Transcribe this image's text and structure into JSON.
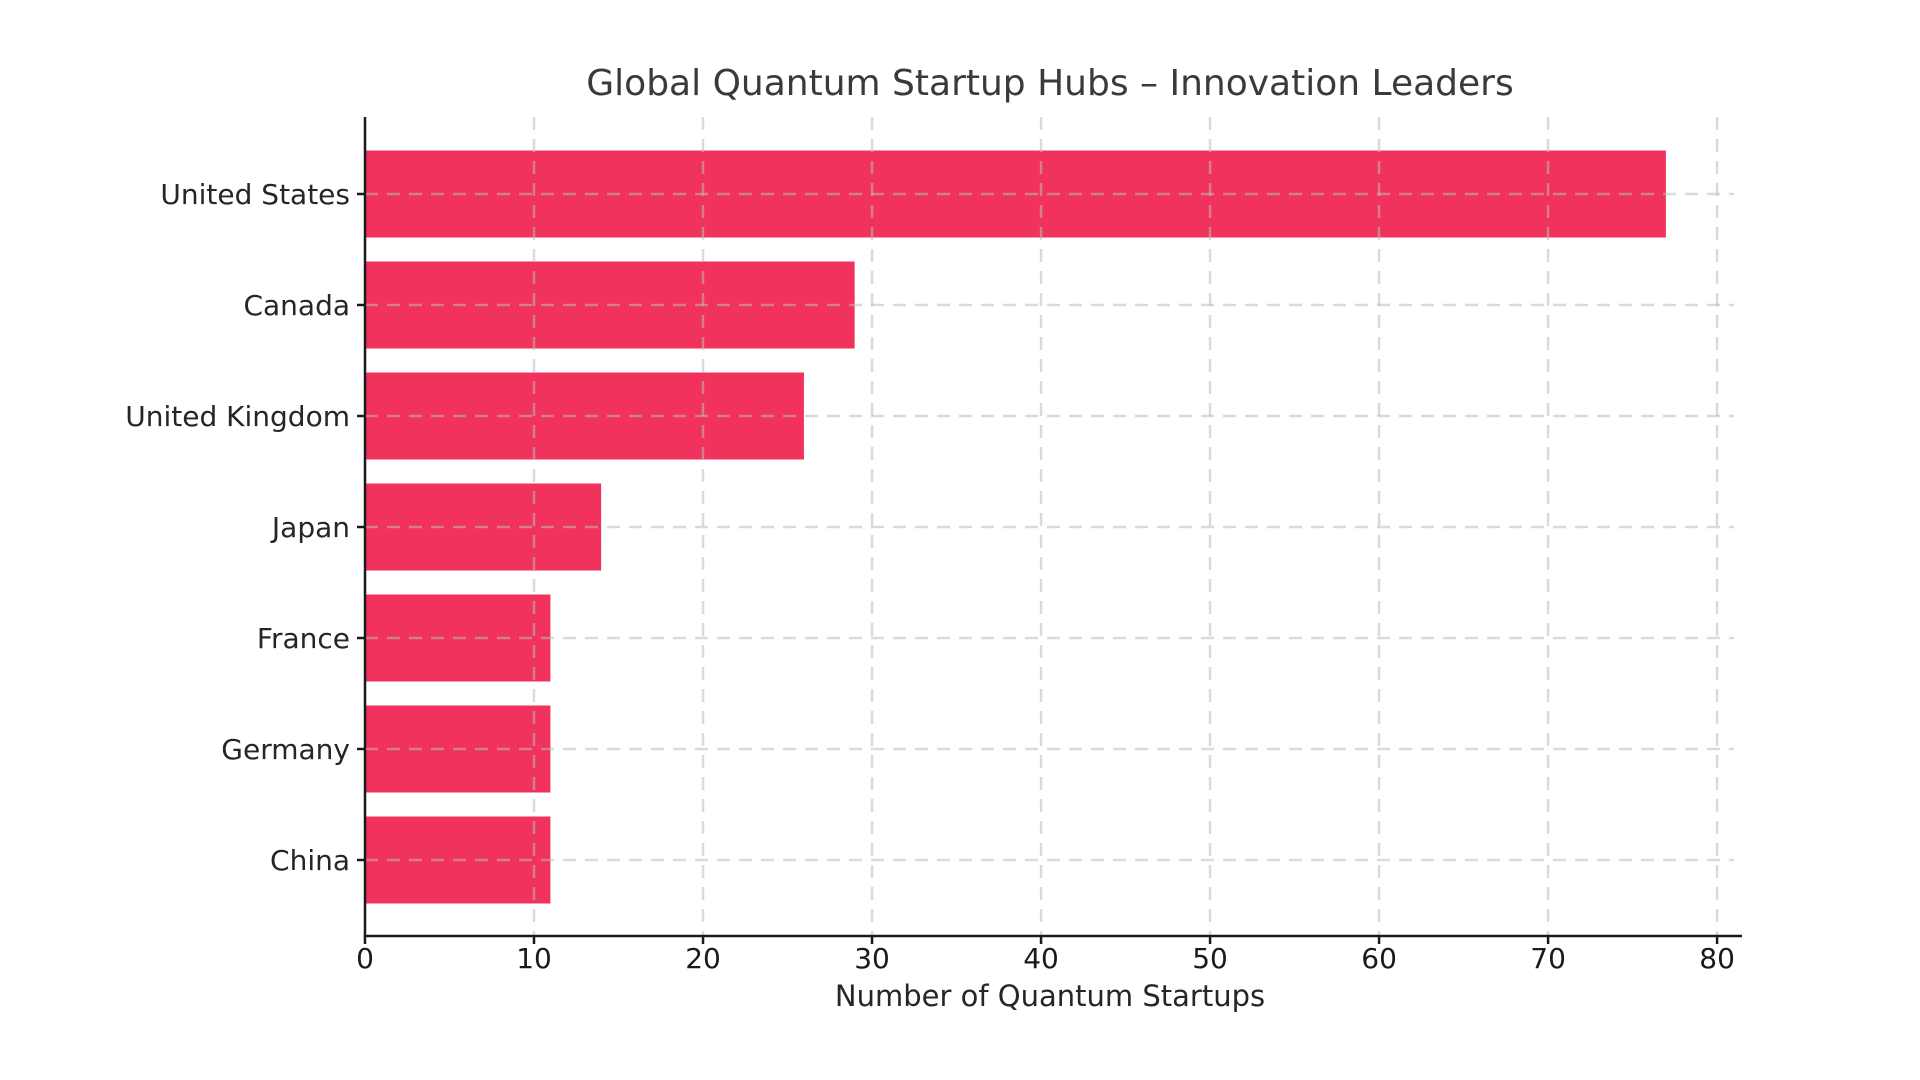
{
  "chart_data": {
    "type": "bar",
    "orientation": "horizontal",
    "title": "Global Quantum Startup Hubs – Innovation Leaders",
    "xlabel": "Number of Quantum Startups",
    "ylabel": "",
    "categories": [
      "United States",
      "Canada",
      "United Kingdom",
      "Japan",
      "France",
      "Germany",
      "China"
    ],
    "values": [
      77,
      29,
      26,
      14,
      11,
      11,
      11
    ],
    "xlim": [
      0,
      81
    ],
    "xticks": [
      0,
      10,
      20,
      30,
      40,
      50,
      60,
      70,
      80
    ],
    "grid": "dashed vertical and horizontal gridlines, drawn over bars",
    "legend": "none",
    "colors": {
      "bar": "#F0325C",
      "bar_edge": "#ffffff",
      "grid": "#bcbcbc",
      "spine": "#1a1a1a",
      "tick_label": "#1a1a1a",
      "category_label": "#262626",
      "axis_label": "#262626",
      "title": "#3a3a3a",
      "background": "#ffffff"
    }
  }
}
